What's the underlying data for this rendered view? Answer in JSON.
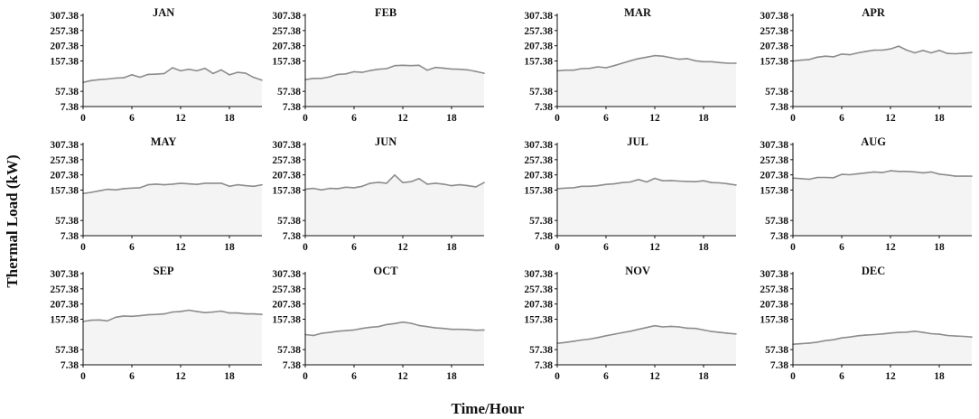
{
  "figure": {
    "xlabel": "Time/Hour",
    "ylabel": "Thermal Load  (kW)"
  },
  "chart_data": {
    "type": "area",
    "grid": false,
    "x": [
      0,
      1,
      2,
      3,
      4,
      5,
      6,
      7,
      8,
      9,
      10,
      11,
      12,
      13,
      14,
      15,
      16,
      17,
      18,
      19,
      20,
      21,
      22
    ],
    "xticks": [
      0,
      6,
      12,
      18
    ],
    "yticks": [
      7.38,
      57.38,
      157.38,
      207.38,
      257.38,
      307.38
    ],
    "ylim": [
      7.38,
      307.38
    ],
    "xlim": [
      0,
      22
    ],
    "colors": {
      "line": "#8c8c8c",
      "fill": "#f4f4f4",
      "axis": "#111111"
    },
    "panels": [
      {
        "title": "JAN",
        "values": [
          87,
          93,
          96,
          98,
          101,
          102,
          112,
          104,
          113,
          114,
          116,
          135,
          125,
          130,
          125,
          133,
          116,
          128,
          112,
          120,
          117,
          103,
          94
        ]
      },
      {
        "title": "FEB",
        "values": [
          96,
          100,
          100,
          105,
          113,
          115,
          122,
          120,
          126,
          130,
          132,
          142,
          143,
          142,
          143,
          127,
          136,
          134,
          131,
          130,
          128,
          123,
          117
        ]
      },
      {
        "title": "MAR",
        "values": [
          125,
          127,
          127,
          132,
          133,
          138,
          135,
          142,
          150,
          158,
          165,
          170,
          175,
          173,
          168,
          163,
          165,
          158,
          155,
          155,
          152,
          150,
          150
        ]
      },
      {
        "title": "APR",
        "values": [
          157,
          160,
          162,
          170,
          173,
          171,
          180,
          178,
          184,
          189,
          193,
          193,
          197,
          206,
          193,
          184,
          192,
          184,
          192,
          182,
          181,
          183,
          185
        ]
      },
      {
        "title": "MAY",
        "values": [
          146,
          150,
          155,
          160,
          158,
          162,
          164,
          165,
          175,
          177,
          175,
          177,
          180,
          178,
          176,
          180,
          180,
          180,
          170,
          175,
          172,
          170,
          175
        ]
      },
      {
        "title": "JUN",
        "values": [
          160,
          163,
          158,
          163,
          162,
          167,
          165,
          170,
          180,
          183,
          180,
          207,
          182,
          185,
          195,
          177,
          180,
          177,
          172,
          175,
          172,
          168,
          182
        ]
      },
      {
        "title": "JUL",
        "values": [
          162,
          164,
          165,
          170,
          170,
          172,
          176,
          178,
          182,
          184,
          192,
          184,
          196,
          188,
          189,
          187,
          186,
          185,
          188,
          182,
          181,
          178,
          174
        ]
      },
      {
        "title": "AUG",
        "values": [
          197,
          195,
          193,
          199,
          199,
          198,
          209,
          208,
          211,
          214,
          217,
          215,
          221,
          219,
          219,
          217,
          214,
          217,
          210,
          207,
          203,
          203,
          203
        ]
      },
      {
        "title": "SEP",
        "values": [
          150,
          154,
          155,
          152,
          164,
          168,
          167,
          169,
          172,
          173,
          175,
          181,
          183,
          187,
          183,
          179,
          181,
          184,
          178,
          178,
          175,
          175,
          173
        ]
      },
      {
        "title": "OCT",
        "values": [
          107,
          104,
          111,
          114,
          118,
          120,
          122,
          127,
          131,
          133,
          140,
          143,
          148,
          144,
          137,
          133,
          129,
          127,
          124,
          124,
          123,
          121,
          122
        ]
      },
      {
        "title": "NOV",
        "values": [
          78,
          81,
          85,
          89,
          92,
          97,
          103,
          108,
          113,
          118,
          124,
          130,
          136,
          132,
          134,
          132,
          128,
          127,
          122,
          117,
          114,
          111,
          109
        ]
      },
      {
        "title": "DEC",
        "values": [
          75,
          77,
          79,
          82,
          87,
          90,
          96,
          99,
          103,
          105,
          107,
          109,
          112,
          114,
          115,
          118,
          114,
          110,
          108,
          104,
          102,
          101,
          99
        ]
      }
    ]
  }
}
